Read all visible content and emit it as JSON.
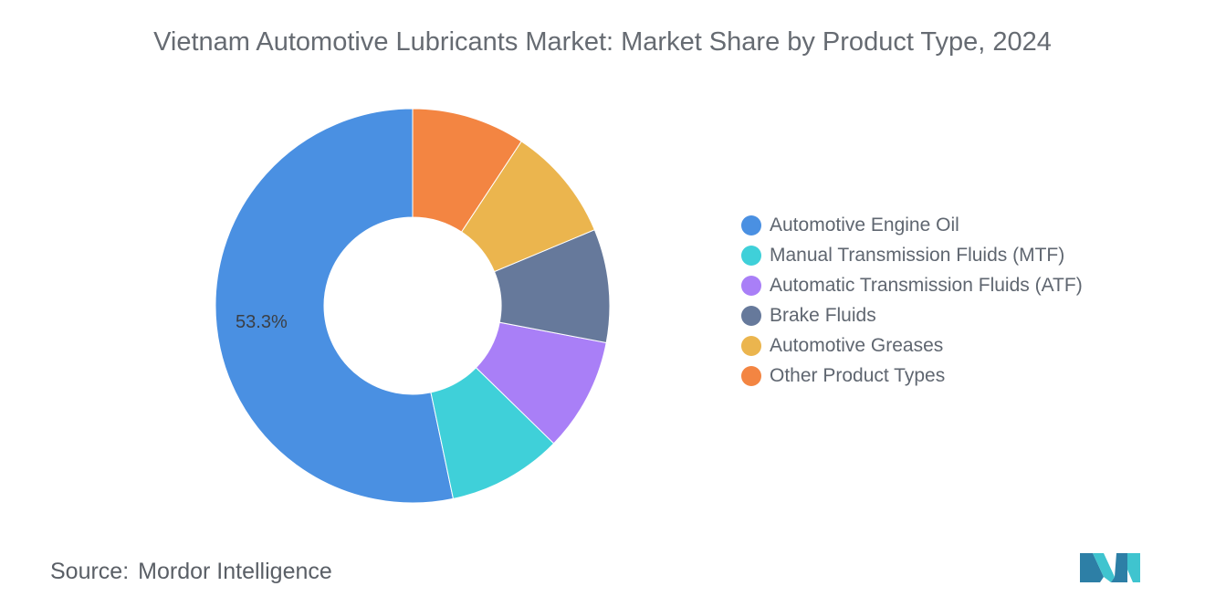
{
  "title": "Vietnam Automotive Lubricants Market: Market Share by Product Type, 2024",
  "chart_data": {
    "type": "pie",
    "title": "Vietnam Automotive Lubricants Market: Market Share by Product Type, 2024",
    "categories": [
      "Automotive Engine Oil",
      "Manual Transmission Fluids (MTF)",
      "Automatic Transmission Fluids (ATF)",
      "Brake Fluids",
      "Automotive Greases",
      "Other Product Types"
    ],
    "values": [
      53.3,
      9.4,
      9.3,
      9.3,
      9.4,
      9.3
    ],
    "labels": [
      "53.3%",
      "",
      "",
      "",
      "",
      ""
    ],
    "colors": [
      "#4a90e2",
      "#3fd0d9",
      "#a97ff7",
      "#66799b",
      "#ebb54e",
      "#f38542"
    ],
    "donut": true,
    "legend_position": "right",
    "order": "counterclockwise from top"
  },
  "legend": {
    "items": [
      {
        "label": "Automotive Engine Oil",
        "color": "#4a90e2"
      },
      {
        "label": "Manual Transmission Fluids (MTF)",
        "color": "#3fd0d9"
      },
      {
        "label": "Automatic Transmission Fluids (ATF)",
        "color": "#a97ff7"
      },
      {
        "label": "Brake Fluids",
        "color": "#66799b"
      },
      {
        "label": "Automotive Greases",
        "color": "#ebb54e"
      },
      {
        "label": "Other Product Types",
        "color": "#f38542"
      }
    ]
  },
  "footer": {
    "source_label": "Source:",
    "source_value": "Mordor Intelligence"
  },
  "logo": {
    "icon": "mordor-intelligence-logo",
    "colors": [
      "#2d7fa6",
      "#3fc4cf"
    ]
  }
}
